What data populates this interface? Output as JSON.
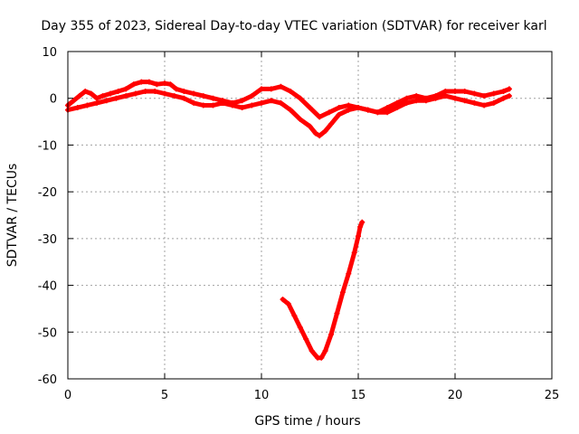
{
  "chart_data": {
    "type": "scatter",
    "title": "Day 355 of 2023, Sidereal Day-to-day VTEC variation (SDTVAR) for receiver karl",
    "xlabel": "GPS time / hours",
    "ylabel": "SDTVAR / TECUs",
    "xlim": [
      0,
      25
    ],
    "ylim": [
      -60,
      10
    ],
    "xticks": [
      0,
      5,
      10,
      15,
      20,
      25
    ],
    "yticks": [
      10,
      0,
      -10,
      -20,
      -30,
      -40,
      -50,
      -60
    ],
    "grid": true,
    "series_color": "#ff0000",
    "series": [
      {
        "name": "upper-track",
        "points": [
          [
            0.0,
            -1.5
          ],
          [
            0.3,
            -0.5
          ],
          [
            0.6,
            0.5
          ],
          [
            0.9,
            1.5
          ],
          [
            1.2,
            1.0
          ],
          [
            1.5,
            0.0
          ],
          [
            1.8,
            0.5
          ],
          [
            2.2,
            1.0
          ],
          [
            2.6,
            1.5
          ],
          [
            3.0,
            2.0
          ],
          [
            3.4,
            3.0
          ],
          [
            3.8,
            3.5
          ],
          [
            4.2,
            3.5
          ],
          [
            4.6,
            3.0
          ],
          [
            5.0,
            3.2
          ],
          [
            5.3,
            3.0
          ],
          [
            5.6,
            2.0
          ],
          [
            6.0,
            1.5
          ],
          [
            6.5,
            1.0
          ],
          [
            7.0,
            0.5
          ],
          [
            7.5,
            0.0
          ],
          [
            8.0,
            -0.5
          ],
          [
            8.5,
            -1.0
          ],
          [
            9.0,
            -0.5
          ],
          [
            9.5,
            0.5
          ],
          [
            10.0,
            2.0
          ],
          [
            10.5,
            2.0
          ],
          [
            11.0,
            2.5
          ],
          [
            11.5,
            1.5
          ],
          [
            12.0,
            0.0
          ],
          [
            12.5,
            -2.0
          ],
          [
            13.0,
            -4.0
          ],
          [
            13.5,
            -3.0
          ],
          [
            14.0,
            -2.0
          ],
          [
            14.5,
            -1.5
          ],
          [
            15.0,
            -2.0
          ],
          [
            15.5,
            -2.5
          ],
          [
            16.0,
            -3.0
          ],
          [
            16.5,
            -2.0
          ],
          [
            17.0,
            -1.0
          ],
          [
            17.5,
            0.0
          ],
          [
            18.0,
            0.5
          ],
          [
            18.5,
            0.0
          ],
          [
            19.0,
            0.5
          ],
          [
            19.5,
            1.5
          ],
          [
            20.0,
            1.5
          ],
          [
            20.5,
            1.5
          ],
          [
            21.0,
            1.0
          ],
          [
            21.5,
            0.5
          ],
          [
            22.0,
            1.0
          ],
          [
            22.5,
            1.5
          ],
          [
            22.8,
            2.0
          ]
        ]
      },
      {
        "name": "lower-track",
        "points": [
          [
            0.0,
            -2.5
          ],
          [
            0.5,
            -2.0
          ],
          [
            1.0,
            -1.5
          ],
          [
            1.5,
            -1.0
          ],
          [
            2.0,
            -0.5
          ],
          [
            2.5,
            0.0
          ],
          [
            3.0,
            0.5
          ],
          [
            3.5,
            1.0
          ],
          [
            4.0,
            1.5
          ],
          [
            4.5,
            1.5
          ],
          [
            5.0,
            1.0
          ],
          [
            5.5,
            0.5
          ],
          [
            6.0,
            0.0
          ],
          [
            6.5,
            -1.0
          ],
          [
            7.0,
            -1.5
          ],
          [
            7.5,
            -1.5
          ],
          [
            8.0,
            -1.0
          ],
          [
            8.5,
            -1.5
          ],
          [
            9.0,
            -2.0
          ],
          [
            9.5,
            -1.5
          ],
          [
            10.0,
            -1.0
          ],
          [
            10.5,
            -0.5
          ],
          [
            11.0,
            -1.0
          ],
          [
            11.5,
            -2.5
          ],
          [
            12.0,
            -4.5
          ],
          [
            12.5,
            -6.0
          ],
          [
            12.8,
            -7.5
          ],
          [
            13.0,
            -8.0
          ],
          [
            13.3,
            -7.0
          ],
          [
            13.6,
            -5.5
          ],
          [
            14.0,
            -3.5
          ],
          [
            14.5,
            -2.5
          ],
          [
            15.0,
            -2.0
          ],
          [
            15.5,
            -2.5
          ],
          [
            16.0,
            -3.0
          ],
          [
            16.5,
            -3.0
          ],
          [
            17.0,
            -2.0
          ],
          [
            17.5,
            -1.0
          ],
          [
            18.0,
            -0.5
          ],
          [
            18.5,
            -0.5
          ],
          [
            19.0,
            0.0
          ],
          [
            19.5,
            0.5
          ],
          [
            20.0,
            0.0
          ],
          [
            20.5,
            -0.5
          ],
          [
            21.0,
            -1.0
          ],
          [
            21.5,
            -1.5
          ],
          [
            22.0,
            -1.0
          ],
          [
            22.5,
            0.0
          ],
          [
            22.8,
            0.5
          ]
        ]
      },
      {
        "name": "dip-arc",
        "points": [
          [
            11.1,
            -43.0
          ],
          [
            11.4,
            -44.0
          ],
          [
            11.7,
            -46.5
          ],
          [
            12.0,
            -49.0
          ],
          [
            12.3,
            -51.5
          ],
          [
            12.6,
            -54.0
          ],
          [
            12.9,
            -55.5
          ],
          [
            13.1,
            -55.5
          ],
          [
            13.3,
            -54.0
          ],
          [
            13.6,
            -50.5
          ],
          [
            13.9,
            -46.0
          ],
          [
            14.2,
            -41.5
          ],
          [
            14.5,
            -37.5
          ],
          [
            14.8,
            -33.0
          ],
          [
            15.0,
            -29.5
          ],
          [
            15.1,
            -27.5
          ],
          [
            15.2,
            -26.5
          ]
        ]
      }
    ]
  }
}
